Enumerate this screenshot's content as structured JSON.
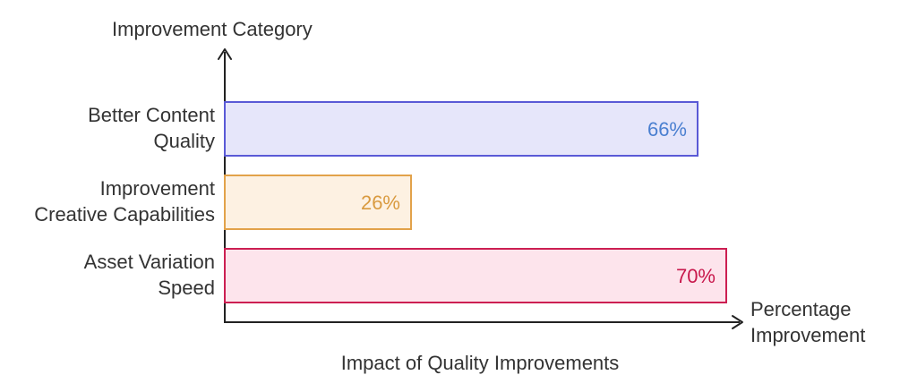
{
  "chart_data": {
    "type": "bar",
    "orientation": "horizontal",
    "title": "Impact of Quality Improvements",
    "ylabel": "Improvement Category",
    "xlabel": "Percentage Improvement",
    "xlabel_lines": [
      "Percentage",
      "Improvement"
    ],
    "categories": [
      "Better Content Quality",
      "Improvement Creative Capabilities",
      "Asset Variation Speed"
    ],
    "category_lines": [
      [
        "Better Content",
        "Quality"
      ],
      [
        "Improvement",
        "Creative Capabilities"
      ],
      [
        "Asset Variation",
        "Speed"
      ]
    ],
    "values": [
      66,
      26,
      70
    ],
    "value_labels": [
      "66%",
      "26%",
      "70%"
    ],
    "unit": "%",
    "xlim": [
      0,
      100
    ],
    "grid": false,
    "legend": "none",
    "colors": [
      {
        "fill": "#e6e6fa",
        "stroke": "#5a5ad6",
        "label": "#4a7fd0"
      },
      {
        "fill": "#fdf1e2",
        "stroke": "#e2a24a",
        "label": "#d99a3f"
      },
      {
        "fill": "#fde4ec",
        "stroke": "#cc1f52",
        "label": "#c8184c"
      }
    ],
    "axis_color": "#222222"
  }
}
